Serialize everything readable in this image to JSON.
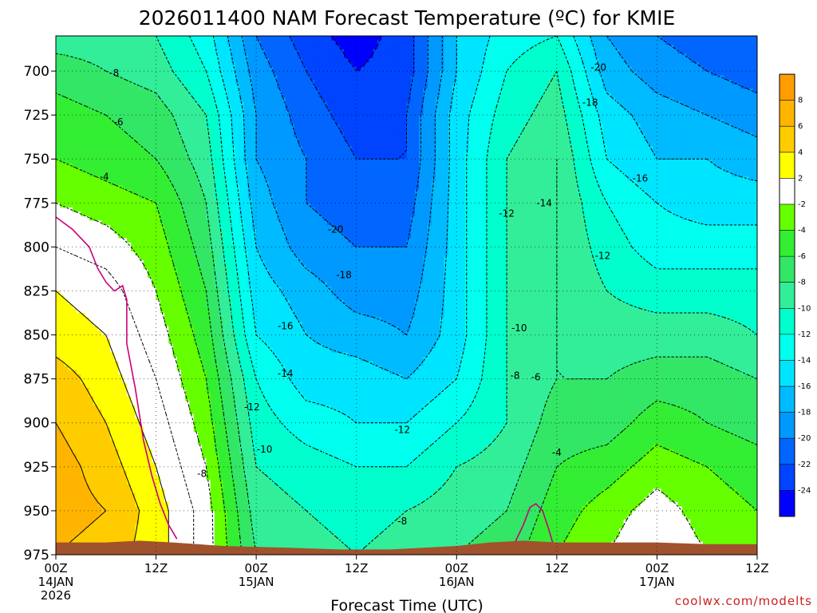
{
  "chart_data": {
    "type": "heatmap",
    "title": "2026011400 NAM Forecast Temperature (ºC) for KMIE",
    "xlabel": "Forecast Time (UTC)",
    "ylabel": "",
    "y_scale": "pressure (hPa, increasing downward)",
    "ylim": [
      975,
      680
    ],
    "y_ticks": [
      700,
      725,
      750,
      775,
      800,
      825,
      850,
      875,
      900,
      925,
      950,
      975
    ],
    "x_ticks": [
      {
        "hour": 0,
        "label": "00Z",
        "sub": [
          "14JAN",
          "2026"
        ]
      },
      {
        "hour": 12,
        "label": "12Z",
        "sub": []
      },
      {
        "hour": 24,
        "label": "00Z",
        "sub": [
          "15JAN"
        ]
      },
      {
        "hour": 36,
        "label": "12Z",
        "sub": []
      },
      {
        "hour": 48,
        "label": "00Z",
        "sub": [
          "16JAN"
        ]
      },
      {
        "hour": 60,
        "label": "12Z",
        "sub": []
      },
      {
        "hour": 72,
        "label": "00Z",
        "sub": [
          "17JAN"
        ]
      },
      {
        "hour": 84,
        "label": "12Z",
        "sub": []
      }
    ],
    "xlim": [
      0,
      84
    ],
    "grid": true,
    "colorbar": {
      "position": "right",
      "bins": [
        {
          "from": 8,
          "to": 10,
          "color": "#ff9d00"
        },
        {
          "from": 6,
          "to": 8,
          "color": "#ffb400"
        },
        {
          "from": 4,
          "to": 6,
          "color": "#ffcc00"
        },
        {
          "from": 2,
          "to": 4,
          "color": "#ffff00"
        },
        {
          "from": -2,
          "to": 2,
          "color": "#ffffff"
        },
        {
          "from": -4,
          "to": -2,
          "color": "#66ff00"
        },
        {
          "from": -6,
          "to": -4,
          "color": "#33ee33"
        },
        {
          "from": -8,
          "to": -6,
          "color": "#33e666"
        },
        {
          "from": -10,
          "to": -8,
          "color": "#33ee99"
        },
        {
          "from": -12,
          "to": -10,
          "color": "#00ffcc"
        },
        {
          "from": -14,
          "to": -12,
          "color": "#00ffee"
        },
        {
          "from": -16,
          "to": -14,
          "color": "#00e5ff"
        },
        {
          "from": -18,
          "to": -16,
          "color": "#00bbff"
        },
        {
          "from": -20,
          "to": -18,
          "color": "#0099ff"
        },
        {
          "from": -22,
          "to": -20,
          "color": "#0066ff"
        },
        {
          "from": -24,
          "to": -22,
          "color": "#0044ff"
        },
        {
          "from": -26,
          "to": -24,
          "color": "#0000ff"
        }
      ],
      "tick_labels": [
        "8",
        "6",
        "4",
        "2",
        "-2",
        "-4",
        "-6",
        "-8",
        "-10",
        "-12",
        "-14",
        "-16",
        "-18",
        "-20",
        "-22",
        "-24"
      ]
    },
    "temperature_profiles": [
      {
        "hour": 0,
        "p": [
          680,
          700,
          725,
          750,
          775,
          800,
          825,
          850,
          875,
          900,
          925,
          950,
          975
        ],
        "t": [
          -9,
          -7,
          -5,
          -4,
          -2,
          0,
          2,
          3,
          5,
          6,
          7,
          7,
          6
        ]
      },
      {
        "hour": 6,
        "p": [
          680,
          700,
          725,
          750,
          775,
          800,
          825,
          850,
          875,
          900,
          925,
          950,
          975
        ],
        "t": [
          -9,
          -8,
          -6,
          -5,
          -3,
          -1,
          1,
          2,
          3,
          4,
          5,
          6,
          5
        ]
      },
      {
        "hour": 12,
        "p": [
          680,
          700,
          725,
          750,
          775,
          800,
          825,
          850,
          875,
          900,
          925,
          950,
          975
        ],
        "t": [
          -10,
          -9,
          -7,
          -6,
          -4,
          -3,
          -2,
          -1,
          0,
          1,
          2,
          3,
          3
        ]
      },
      {
        "hour": 18,
        "p": [
          680,
          700,
          725,
          750,
          775,
          800,
          825,
          850,
          875,
          900,
          925,
          950,
          975
        ],
        "t": [
          -13,
          -12,
          -10,
          -9,
          -8,
          -7,
          -6,
          -5,
          -4,
          -3,
          -2,
          -1,
          -1
        ]
      },
      {
        "hour": 24,
        "p": [
          680,
          700,
          725,
          750,
          775,
          800,
          825,
          850,
          875,
          900,
          925,
          950,
          975
        ],
        "t": [
          -20,
          -19,
          -18,
          -18,
          -17,
          -16,
          -15,
          -14,
          -12,
          -11,
          -10,
          -9,
          -8
        ]
      },
      {
        "hour": 30,
        "p": [
          680,
          700,
          725,
          750,
          775,
          800,
          825,
          850,
          875,
          900,
          925,
          950,
          975
        ],
        "t": [
          -23,
          -22,
          -21,
          -20,
          -20,
          -19,
          -17,
          -16,
          -15,
          -13,
          -11,
          -10,
          -9
        ]
      },
      {
        "hour": 36,
        "p": [
          680,
          700,
          725,
          750,
          775,
          800,
          825,
          850,
          875,
          900,
          925,
          950,
          975
        ],
        "t": [
          -25,
          -24,
          -23,
          -22,
          -21,
          -20,
          -19,
          -17,
          -15,
          -14,
          -12,
          -11,
          -10
        ]
      },
      {
        "hour": 42,
        "p": [
          680,
          700,
          725,
          750,
          775,
          800,
          825,
          850,
          875,
          900,
          925,
          950,
          975
        ],
        "t": [
          -23,
          -23,
          -22,
          -22,
          -21,
          -20,
          -19,
          -18,
          -16,
          -14,
          -12,
          -10,
          -9
        ]
      },
      {
        "hour": 48,
        "p": [
          680,
          700,
          725,
          750,
          775,
          800,
          825,
          850,
          875,
          900,
          925,
          950,
          975
        ],
        "t": [
          -16,
          -16,
          -15,
          -15,
          -15,
          -15,
          -15,
          -15,
          -14,
          -12,
          -10,
          -9,
          -8
        ]
      },
      {
        "hour": 54,
        "p": [
          680,
          700,
          725,
          750,
          775,
          800,
          825,
          850,
          875,
          900,
          925,
          950,
          975
        ],
        "t": [
          -13,
          -12,
          -11,
          -10,
          -10,
          -10,
          -10,
          -10,
          -10,
          -10,
          -9,
          -8,
          -7
        ]
      },
      {
        "hour": 60,
        "p": [
          680,
          700,
          725,
          750,
          775,
          800,
          825,
          850,
          875,
          900,
          925,
          950,
          975
        ],
        "t": [
          -12,
          -10,
          -9,
          -8,
          -8,
          -8,
          -8,
          -8,
          -8,
          -7,
          -6,
          -5,
          -4
        ]
      },
      {
        "hour": 66,
        "p": [
          680,
          700,
          725,
          750,
          775,
          800,
          825,
          850,
          875,
          900,
          925,
          950,
          975
        ],
        "t": [
          -18,
          -17,
          -15,
          -14,
          -12,
          -11,
          -10,
          -9,
          -8,
          -7,
          -5,
          -3,
          -2
        ]
      },
      {
        "hour": 72,
        "p": [
          680,
          700,
          725,
          750,
          775,
          800,
          825,
          850,
          875,
          900,
          925,
          950,
          975
        ],
        "t": [
          -20,
          -19,
          -17,
          -16,
          -14,
          -13,
          -11,
          -9,
          -7,
          -5,
          -3,
          -1,
          0
        ]
      },
      {
        "hour": 78,
        "p": [
          680,
          700,
          725,
          750,
          775,
          800,
          825,
          850,
          875,
          900,
          925,
          950,
          975
        ],
        "t": [
          -21,
          -20,
          -18,
          -16,
          -15,
          -13,
          -11,
          -9,
          -7,
          -6,
          -4,
          -3,
          -2
        ]
      },
      {
        "hour": 84,
        "p": [
          680,
          700,
          725,
          750,
          775,
          800,
          825,
          850,
          875,
          900,
          925,
          950,
          975
        ],
        "t": [
          -22,
          -21,
          -19,
          -17,
          -15,
          -13,
          -11,
          -10,
          -8,
          -7,
          -5,
          -4,
          -3
        ]
      }
    ],
    "contour_labels": [
      {
        "text": "-8",
        "hour": 7.0,
        "p": 701
      },
      {
        "text": "-6",
        "hour": 7.5,
        "p": 729
      },
      {
        "text": "-4",
        "hour": 5.8,
        "p": 760
      },
      {
        "text": "-20",
        "hour": 33.5,
        "p": 790
      },
      {
        "text": "-18",
        "hour": 34.5,
        "p": 816
      },
      {
        "text": "-16",
        "hour": 27.5,
        "p": 845
      },
      {
        "text": "-14",
        "hour": 27.5,
        "p": 872
      },
      {
        "text": "-12",
        "hour": 23.5,
        "p": 891
      },
      {
        "text": "-10",
        "hour": 25.0,
        "p": 915
      },
      {
        "text": "-8",
        "hour": 17.5,
        "p": 929
      },
      {
        "text": "-8",
        "hour": 41.5,
        "p": 956
      },
      {
        "text": "-12",
        "hour": 41.5,
        "p": 904
      },
      {
        "text": "-20",
        "hour": 65.0,
        "p": 698
      },
      {
        "text": "-18",
        "hour": 64.0,
        "p": 718
      },
      {
        "text": "-16",
        "hour": 70.0,
        "p": 761
      },
      {
        "text": "-14",
        "hour": 58.5,
        "p": 775
      },
      {
        "text": "-12",
        "hour": 54.0,
        "p": 781
      },
      {
        "text": "-12",
        "hour": 65.5,
        "p": 805
      },
      {
        "text": "-10",
        "hour": 55.5,
        "p": 846
      },
      {
        "text": "-8",
        "hour": 55.0,
        "p": 873
      },
      {
        "text": "-6",
        "hour": 57.5,
        "p": 874
      },
      {
        "text": "-4",
        "hour": 60.0,
        "p": 917
      }
    ],
    "freezing_line": {
      "color": "#cc0077",
      "points": [
        [
          0,
          783
        ],
        [
          2,
          790
        ],
        [
          4,
          800
        ],
        [
          5,
          812
        ],
        [
          6,
          820
        ],
        [
          7,
          825
        ],
        [
          8,
          822
        ],
        [
          8.5,
          830
        ],
        [
          8.5,
          855
        ],
        [
          9.5,
          880
        ],
        [
          10.5,
          910
        ],
        [
          11.5,
          930
        ],
        [
          12.5,
          946
        ],
        [
          13.5,
          958
        ],
        [
          14.5,
          966
        ]
      ]
    },
    "freezing_line_2": {
      "color": "#cc0077",
      "points": [
        [
          55,
          968
        ],
        [
          56,
          958
        ],
        [
          56.8,
          948
        ],
        [
          57.5,
          946
        ],
        [
          58.3,
          950
        ],
        [
          59,
          960
        ],
        [
          59.5,
          968
        ]
      ]
    },
    "terrain": {
      "color": "#a0522d",
      "surface_pressure": [
        [
          0,
          968
        ],
        [
          6,
          968
        ],
        [
          10,
          967
        ],
        [
          14,
          968
        ],
        [
          20,
          970
        ],
        [
          28,
          971
        ],
        [
          34,
          972
        ],
        [
          40,
          972
        ],
        [
          44,
          971
        ],
        [
          48,
          970
        ],
        [
          52,
          968
        ],
        [
          56,
          967
        ],
        [
          60,
          968
        ],
        [
          66,
          968
        ],
        [
          72,
          968
        ],
        [
          78,
          969
        ],
        [
          84,
          969
        ]
      ]
    }
  },
  "credit": "coolwx.com/modelts"
}
